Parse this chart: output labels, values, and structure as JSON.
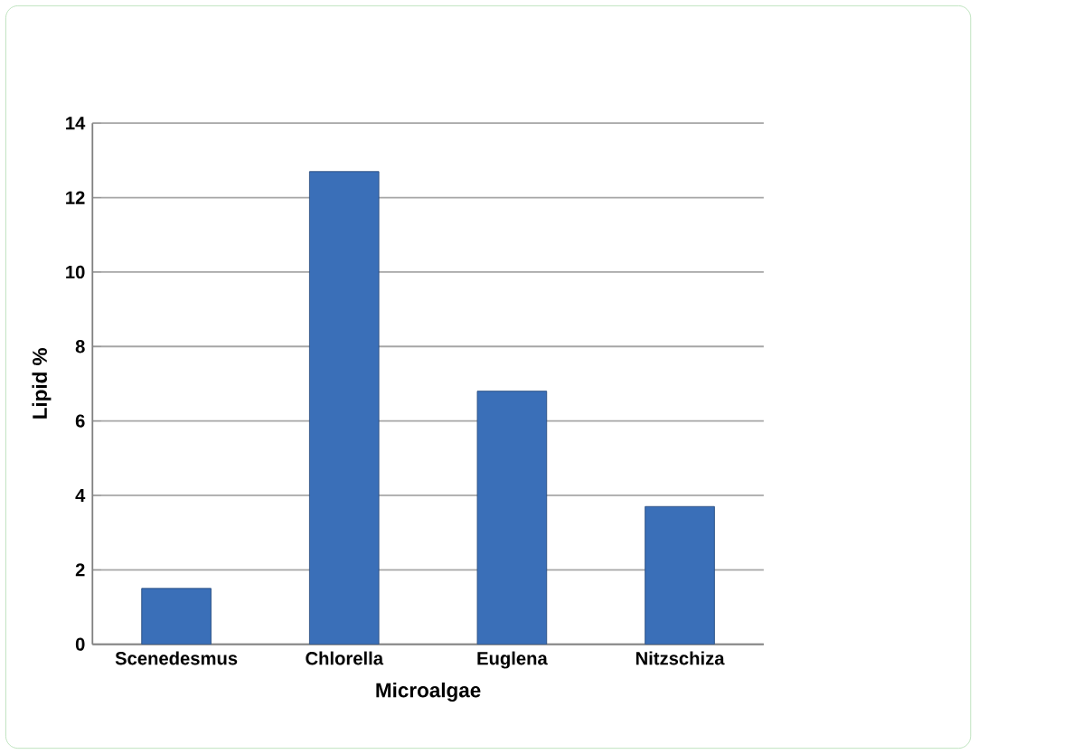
{
  "chart_data": {
    "type": "bar",
    "xlabel": "Microalgae",
    "ylabel": "Lipid %",
    "categories": [
      "Scenedesmus",
      "Chlorella",
      "Euglena",
      "Nitzschiza"
    ],
    "values": [
      1.5,
      12.7,
      6.8,
      3.7
    ],
    "color": "#3a6fb8",
    "ylim": [
      0,
      14
    ],
    "yticks": [
      0,
      2,
      4,
      6,
      8,
      10,
      12,
      14
    ],
    "grid": "y"
  }
}
